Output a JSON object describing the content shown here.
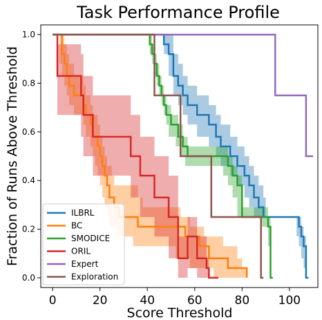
{
  "chart_data": {
    "type": "line",
    "title": "Task Performance Profile",
    "xlabel": "Score Threshold",
    "ylabel": "Fraction of Runs Above Threshold",
    "xlim": [
      -5,
      112
    ],
    "ylim": [
      -0.04,
      1.04
    ],
    "xticks": [
      0,
      20,
      40,
      60,
      80,
      100
    ],
    "yticks": [
      0.0,
      0.2,
      0.4,
      0.6,
      0.8,
      1.0
    ],
    "grid": false,
    "legend_position": "lower-left",
    "series": [
      {
        "name": "ILBRL",
        "color": "#1f77b4",
        "x": [
          0,
          46,
          47,
          48,
          49,
          50,
          51,
          52,
          53,
          54,
          55,
          56,
          57,
          58,
          60,
          61,
          62,
          63,
          64,
          65,
          66,
          67,
          68,
          69,
          70,
          71,
          72,
          73,
          74,
          75,
          76,
          77,
          78,
          79,
          80,
          81,
          82,
          83,
          84,
          85,
          86,
          87,
          88,
          89,
          90,
          91,
          92,
          93,
          94,
          95,
          96,
          97,
          98,
          99,
          100,
          101,
          102,
          103,
          104,
          105,
          106,
          107,
          108
        ],
        "y": [
          1.0,
          1.0,
          0.96,
          0.96,
          0.92,
          0.92,
          0.83,
          0.83,
          0.79,
          0.79,
          0.75,
          0.75,
          0.71,
          0.71,
          0.71,
          0.67,
          0.67,
          0.67,
          0.67,
          0.67,
          0.63,
          0.63,
          0.63,
          0.58,
          0.58,
          0.54,
          0.54,
          0.54,
          0.54,
          0.5,
          0.5,
          0.5,
          0.46,
          0.46,
          0.46,
          0.42,
          0.42,
          0.38,
          0.38,
          0.33,
          0.33,
          0.29,
          0.29,
          0.25,
          0.25,
          0.25,
          0.25,
          0.25,
          0.25,
          0.25,
          0.25,
          0.25,
          0.25,
          0.25,
          0.25,
          0.25,
          0.25,
          0.25,
          0.21,
          0.17,
          0.13,
          0.0,
          0.0
        ],
        "lower": [
          1.0,
          1.0,
          0.92,
          0.92,
          0.83,
          0.83,
          0.75,
          0.75,
          0.71,
          0.71,
          0.67,
          0.67,
          0.63,
          0.63,
          0.63,
          0.58,
          0.58,
          0.58,
          0.58,
          0.58,
          0.54,
          0.54,
          0.54,
          0.5,
          0.5,
          0.46,
          0.46,
          0.46,
          0.46,
          0.42,
          0.42,
          0.42,
          0.38,
          0.38,
          0.38,
          0.33,
          0.33,
          0.29,
          0.29,
          0.25,
          0.25,
          0.25,
          0.25,
          0.25,
          0.25,
          0.25,
          0.25,
          0.25,
          0.25,
          0.25,
          0.25,
          0.25,
          0.25,
          0.25,
          0.25,
          0.25,
          0.25,
          0.17,
          0.13,
          0.08,
          0.04,
          0.0,
          0.0
        ],
        "upper": [
          1.0,
          1.0,
          1.0,
          1.0,
          1.0,
          1.0,
          0.92,
          0.92,
          0.88,
          0.88,
          0.83,
          0.83,
          0.79,
          0.79,
          0.79,
          0.75,
          0.75,
          0.75,
          0.75,
          0.75,
          0.71,
          0.71,
          0.71,
          0.67,
          0.67,
          0.63,
          0.63,
          0.63,
          0.63,
          0.58,
          0.58,
          0.58,
          0.54,
          0.54,
          0.54,
          0.5,
          0.5,
          0.46,
          0.46,
          0.42,
          0.42,
          0.38,
          0.38,
          0.33,
          0.25,
          0.25,
          0.25,
          0.25,
          0.25,
          0.25,
          0.25,
          0.25,
          0.25,
          0.25,
          0.25,
          0.25,
          0.25,
          0.25,
          0.25,
          0.21,
          0.17,
          0.0,
          0.0
        ]
      },
      {
        "name": "BC",
        "color": "#ff7f0e",
        "x": [
          0,
          3,
          4,
          5,
          6,
          7,
          8,
          9,
          10,
          12,
          13,
          14,
          15,
          16,
          17,
          18,
          19,
          20,
          21,
          22,
          23,
          24,
          25,
          26,
          27,
          28,
          29,
          30,
          32,
          34,
          36,
          38,
          40,
          44,
          48,
          50,
          52,
          54,
          56,
          58,
          60,
          62,
          64,
          66,
          68,
          70,
          72,
          74,
          76,
          78,
          80,
          82
        ],
        "y": [
          1.0,
          1.0,
          0.92,
          0.88,
          0.83,
          0.79,
          0.79,
          0.75,
          0.75,
          0.75,
          0.71,
          0.67,
          0.67,
          0.63,
          0.58,
          0.58,
          0.54,
          0.5,
          0.46,
          0.42,
          0.38,
          0.33,
          0.33,
          0.29,
          0.29,
          0.25,
          0.25,
          0.25,
          0.25,
          0.25,
          0.21,
          0.21,
          0.21,
          0.21,
          0.21,
          0.21,
          0.21,
          0.21,
          0.17,
          0.17,
          0.17,
          0.13,
          0.13,
          0.08,
          0.08,
          0.08,
          0.08,
          0.04,
          0.04,
          0.04,
          0.04,
          0.0
        ],
        "lower": [
          1.0,
          0.88,
          0.83,
          0.79,
          0.75,
          0.71,
          0.71,
          0.67,
          0.67,
          0.67,
          0.63,
          0.58,
          0.58,
          0.54,
          0.5,
          0.46,
          0.42,
          0.38,
          0.33,
          0.29,
          0.25,
          0.21,
          0.21,
          0.21,
          0.17,
          0.17,
          0.17,
          0.17,
          0.17,
          0.13,
          0.13,
          0.13,
          0.13,
          0.13,
          0.13,
          0.13,
          0.08,
          0.08,
          0.08,
          0.04,
          0.04,
          0.04,
          0.04,
          0.04,
          0.0,
          0.0,
          0.0,
          0.0,
          0.0,
          0.0,
          0.0,
          0.0
        ],
        "upper": [
          1.0,
          1.0,
          1.0,
          0.96,
          0.92,
          0.88,
          0.88,
          0.83,
          0.83,
          0.83,
          0.79,
          0.75,
          0.75,
          0.71,
          0.67,
          0.67,
          0.63,
          0.58,
          0.54,
          0.5,
          0.46,
          0.46,
          0.42,
          0.38,
          0.38,
          0.38,
          0.38,
          0.38,
          0.38,
          0.38,
          0.33,
          0.29,
          0.29,
          0.29,
          0.29,
          0.29,
          0.29,
          0.25,
          0.25,
          0.21,
          0.21,
          0.21,
          0.17,
          0.17,
          0.17,
          0.17,
          0.13,
          0.13,
          0.13,
          0.08,
          0.04,
          0.0
        ]
      },
      {
        "name": "SMODICE",
        "color": "#2ca02c",
        "x": [
          0,
          40,
          41,
          42,
          43,
          44,
          45,
          46,
          47,
          48,
          49,
          50,
          51,
          52,
          53,
          54,
          55,
          56,
          57,
          58,
          60,
          62,
          64,
          66,
          68,
          70,
          72,
          74,
          76,
          78,
          80,
          82,
          84,
          86,
          88,
          90,
          91,
          92,
          93
        ],
        "y": [
          1.0,
          1.0,
          0.96,
          0.92,
          0.88,
          0.83,
          0.79,
          0.75,
          0.71,
          0.67,
          0.67,
          0.63,
          0.63,
          0.63,
          0.58,
          0.58,
          0.54,
          0.54,
          0.5,
          0.5,
          0.5,
          0.5,
          0.5,
          0.5,
          0.5,
          0.5,
          0.5,
          0.46,
          0.42,
          0.38,
          0.25,
          0.25,
          0.25,
          0.25,
          0.25,
          0.25,
          0.21,
          0.0,
          0.0
        ],
        "lower": [
          1.0,
          1.0,
          0.92,
          0.88,
          0.83,
          0.79,
          0.75,
          0.71,
          0.67,
          0.63,
          0.58,
          0.58,
          0.58,
          0.54,
          0.54,
          0.5,
          0.5,
          0.46,
          0.46,
          0.46,
          0.46,
          0.46,
          0.46,
          0.46,
          0.46,
          0.46,
          0.42,
          0.38,
          0.33,
          0.25,
          0.25,
          0.25,
          0.25,
          0.25,
          0.21,
          0.21,
          0.13,
          0.0,
          0.0
        ],
        "upper": [
          1.0,
          1.0,
          1.0,
          0.96,
          0.92,
          0.88,
          0.83,
          0.79,
          0.75,
          0.71,
          0.71,
          0.67,
          0.67,
          0.67,
          0.63,
          0.63,
          0.58,
          0.58,
          0.54,
          0.54,
          0.54,
          0.54,
          0.54,
          0.54,
          0.54,
          0.54,
          0.54,
          0.5,
          0.46,
          0.42,
          0.29,
          0.29,
          0.29,
          0.29,
          0.29,
          0.29,
          0.25,
          0.0,
          0.0
        ]
      },
      {
        "name": "ORIL",
        "color": "#d62728",
        "x": [
          0,
          2,
          8,
          12,
          13,
          16,
          17,
          20,
          32,
          33,
          36,
          37,
          42,
          43,
          48,
          49,
          52,
          53,
          56,
          57,
          60,
          61,
          64,
          65,
          66,
          70
        ],
        "y": [
          1.0,
          0.83,
          0.83,
          0.75,
          0.67,
          0.67,
          0.58,
          0.58,
          0.58,
          0.5,
          0.5,
          0.42,
          0.42,
          0.33,
          0.33,
          0.25,
          0.25,
          0.08,
          0.08,
          0.17,
          0.17,
          0.08,
          0.08,
          0.04,
          0.0,
          0.0
        ],
        "lower": [
          1.0,
          0.67,
          0.67,
          0.58,
          0.5,
          0.5,
          0.42,
          0.42,
          0.42,
          0.33,
          0.33,
          0.25,
          0.25,
          0.17,
          0.17,
          0.08,
          0.08,
          0.0,
          0.0,
          0.04,
          0.04,
          0.0,
          0.0,
          0.0,
          0.0,
          0.0
        ],
        "upper": [
          1.0,
          0.96,
          0.96,
          0.92,
          0.83,
          0.83,
          0.75,
          0.75,
          0.75,
          0.67,
          0.67,
          0.58,
          0.58,
          0.5,
          0.5,
          0.42,
          0.42,
          0.17,
          0.17,
          0.25,
          0.25,
          0.17,
          0.17,
          0.08,
          0.0,
          0.0
        ]
      },
      {
        "name": "Expert",
        "color": "#9467bd",
        "x": [
          0,
          93,
          94,
          106,
          107,
          108,
          110
        ],
        "y": [
          1.0,
          1.0,
          0.75,
          0.75,
          0.5,
          0.5,
          0.5
        ],
        "lower": [
          1.0,
          1.0,
          0.75,
          0.75,
          0.5,
          0.5,
          0.5
        ],
        "upper": [
          1.0,
          1.0,
          0.75,
          0.75,
          0.5,
          0.5,
          0.5
        ]
      },
      {
        "name": "Exploration",
        "color": "#8c564b",
        "x": [
          0,
          42,
          43,
          52,
          53,
          54,
          55,
          56,
          66,
          67,
          75,
          76,
          87,
          88,
          89
        ],
        "y": [
          1.0,
          1.0,
          0.75,
          0.75,
          0.75,
          0.5,
          0.5,
          0.5,
          0.5,
          0.25,
          0.25,
          0.25,
          0.25,
          0.0,
          0.0
        ],
        "lower": [
          1.0,
          1.0,
          0.75,
          0.75,
          0.75,
          0.5,
          0.5,
          0.5,
          0.5,
          0.25,
          0.25,
          0.25,
          0.25,
          0.0,
          0.0
        ],
        "upper": [
          1.0,
          1.0,
          0.75,
          0.75,
          0.75,
          0.5,
          0.5,
          0.5,
          0.5,
          0.25,
          0.25,
          0.25,
          0.25,
          0.0,
          0.0
        ]
      }
    ]
  }
}
